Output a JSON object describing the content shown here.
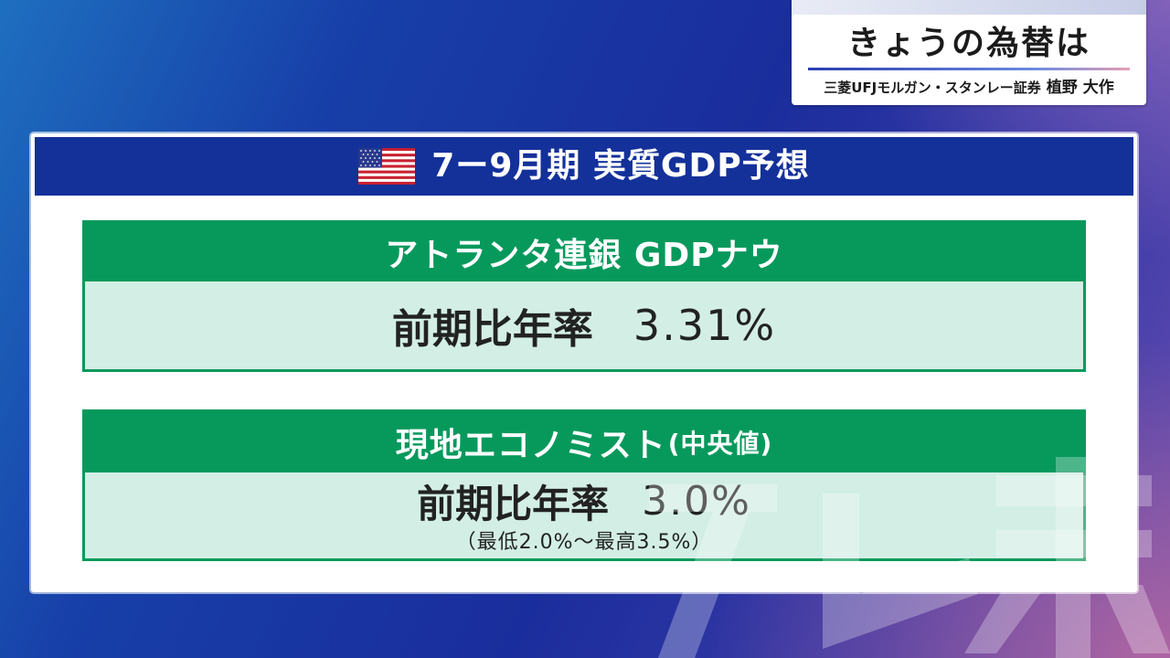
{
  "corner_caption": {
    "title": "きょうの為替は",
    "organization": "三菱UFJモルガン・スタンレー証券",
    "speaker_name": "植野 大作"
  },
  "card": {
    "flag_icon": "us-flag-icon",
    "title": "7ー9月期 実質GDP予想"
  },
  "panels": [
    {
      "header": "アトランタ連銀 GDPナウ",
      "metric_label": "前期比年率",
      "metric_value": "3.31%"
    },
    {
      "header": "現地エコノミスト",
      "header_note": "(中央値)",
      "metric_label": "前期比年率",
      "metric_value": "3.0%",
      "range": "（最低2.0%〜最高3.5%）"
    }
  ],
  "colors": {
    "header_blue": "#14319a",
    "panel_green": "#07995c",
    "panel_body": "#d3efe5"
  }
}
